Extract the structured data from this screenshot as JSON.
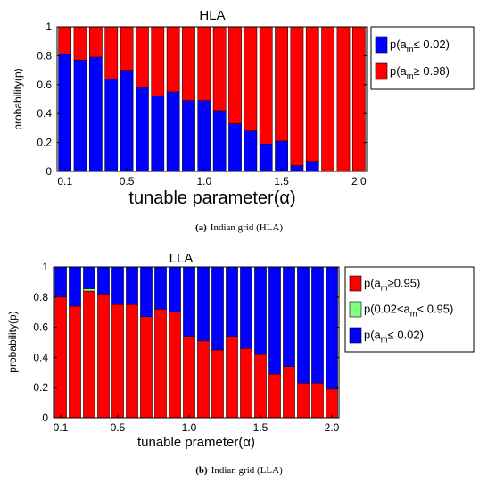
{
  "colors": {
    "low": "#0000ff",
    "high": "#ff0000",
    "mid": "#80ff80",
    "axis": "#000000",
    "bg": "#ffffff"
  },
  "captions": [
    {
      "label": "(a)",
      "text": "Indian grid (HLA)"
    },
    {
      "label": "(b)",
      "text": "Indian grid (LLA)"
    }
  ],
  "chart_data": [
    {
      "type": "bar",
      "stacked": true,
      "title": "HLA",
      "xlabel": "tunable parameter(α)",
      "ylabel": "probability(p)",
      "ylim": [
        0,
        1
      ],
      "yticks": [
        "0",
        "0.2",
        "0.4",
        "0.6",
        "0.8",
        "1"
      ],
      "xticks": [
        "0.1",
        "0.5",
        "1.0",
        "1.5",
        "2.0"
      ],
      "xtick_values": [
        0.1,
        0.5,
        1.0,
        1.5,
        2.0
      ],
      "x": [
        0.1,
        0.2,
        0.3,
        0.4,
        0.5,
        0.6,
        0.7,
        0.8,
        0.9,
        1.0,
        1.1,
        1.2,
        1.3,
        1.4,
        1.5,
        1.6,
        1.7,
        1.8,
        1.9,
        2.0
      ],
      "legend_position": "outside-right",
      "series": [
        {
          "name": "p(a_m≥ 0.98)",
          "color": "#ff0000",
          "values": [
            0.19,
            0.23,
            0.21,
            0.36,
            0.3,
            0.42,
            0.48,
            0.45,
            0.51,
            0.51,
            0.58,
            0.67,
            0.72,
            0.81,
            0.79,
            0.96,
            0.93,
            1.0,
            1.0,
            1.0
          ]
        },
        {
          "name": "p(a_m≤ 0.02)",
          "color": "#0000ff",
          "values": [
            0.81,
            0.77,
            0.79,
            0.64,
            0.7,
            0.58,
            0.52,
            0.55,
            0.49,
            0.49,
            0.42,
            0.33,
            0.28,
            0.19,
            0.21,
            0.04,
            0.07,
            0.0,
            0.0,
            0.0
          ]
        }
      ],
      "legend": [
        {
          "pre": "p(a",
          "sub": "m",
          "post": "≤ 0.02)",
          "color": "#0000ff"
        },
        {
          "pre": "p(a",
          "sub": "m",
          "post": "≥ 0.98)",
          "color": "#ff0000"
        }
      ]
    },
    {
      "type": "bar",
      "stacked": true,
      "title": "LLA",
      "xlabel": "tunable prameter(α)",
      "ylabel": "probability(p)",
      "ylim": [
        0,
        1
      ],
      "yticks": [
        "0",
        "0.2",
        "0.4",
        "0.6",
        "0.8",
        "1"
      ],
      "xticks": [
        "0.1",
        "0.5",
        "1.0",
        "1.5",
        "2.0"
      ],
      "xtick_values": [
        0.1,
        0.5,
        1.0,
        1.5,
        2.0
      ],
      "x": [
        0.1,
        0.2,
        0.3,
        0.4,
        0.5,
        0.6,
        0.7,
        0.8,
        0.9,
        1.0,
        1.1,
        1.2,
        1.3,
        1.4,
        1.5,
        1.6,
        1.7,
        1.8,
        1.9,
        2.0
      ],
      "legend_position": "outside-right",
      "series": [
        {
          "name": "p(a_m≥0.95)",
          "color": "#ff0000",
          "values": [
            0.8,
            0.74,
            0.84,
            0.82,
            0.75,
            0.75,
            0.67,
            0.72,
            0.7,
            0.54,
            0.51,
            0.45,
            0.54,
            0.46,
            0.42,
            0.29,
            0.34,
            0.23,
            0.23,
            0.19
          ]
        },
        {
          "name": "p(0.02<a_m< 0.95)",
          "color": "#80ff80",
          "values": [
            0.0,
            0.0,
            0.015,
            0.0,
            0.0,
            0.0,
            0.0,
            0.0,
            0.0,
            0.0,
            0.0,
            0.0,
            0.0,
            0.0,
            0.0,
            0.0,
            0.0,
            0.0,
            0.0,
            0.0
          ]
        },
        {
          "name": "p(a_m≤ 0.02)",
          "color": "#0000ff",
          "values": [
            0.2,
            0.26,
            0.145,
            0.18,
            0.25,
            0.25,
            0.33,
            0.28,
            0.3,
            0.46,
            0.49,
            0.55,
            0.46,
            0.54,
            0.58,
            0.71,
            0.66,
            0.77,
            0.77,
            0.81
          ]
        }
      ],
      "legend": [
        {
          "pre": "p(a",
          "sub": "m",
          "post": "≥0.95)",
          "color": "#ff0000"
        },
        {
          "pre": "p(0.02<a",
          "sub": "m",
          "post": "< 0.95)",
          "color": "#80ff80"
        },
        {
          "pre": "p(a",
          "sub": "m",
          "post": "≤ 0.02)",
          "color": "#0000ff"
        }
      ]
    }
  ]
}
